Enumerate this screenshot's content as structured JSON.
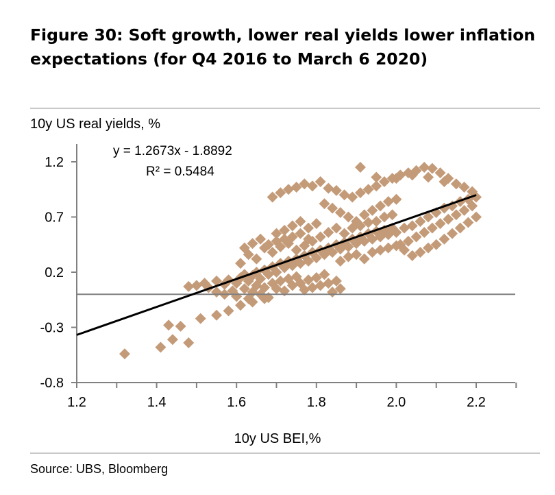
{
  "figure": {
    "title": "Figure 30: Soft growth, lower real yields lower inflation expectations (for Q4 2016 to March 6 2020)",
    "source": "Source:  UBS, Bloomberg"
  },
  "chart_data": {
    "type": "scatter",
    "ylabel": "10y US real yields, %",
    "xlabel": "10y US BEI,%",
    "xlim": [
      1.2,
      2.3
    ],
    "ylim": [
      -0.8,
      1.4
    ],
    "x_ticks": [
      "1.2",
      "1.4",
      "1.6",
      "1.8",
      "2.0",
      "2.2"
    ],
    "y_ticks": [
      "1.2",
      "0.7",
      "0.2",
      "-0.3",
      "-0.8"
    ],
    "grid": false,
    "legend": "none",
    "point_color": "#c49b78",
    "trendline": {
      "slope": 1.2673,
      "intercept": -1.8892,
      "x_range": [
        1.2,
        2.2
      ],
      "equation": "y = 1.2673x - 1.8892",
      "r_squared": "R² = 0.5484",
      "color": "#000000"
    },
    "points": [
      [
        1.32,
        -0.54
      ],
      [
        1.41,
        -0.48
      ],
      [
        1.44,
        -0.41
      ],
      [
        1.48,
        -0.44
      ],
      [
        1.43,
        -0.28
      ],
      [
        1.46,
        -0.29
      ],
      [
        1.51,
        -0.22
      ],
      [
        1.55,
        -0.19
      ],
      [
        1.58,
        -0.15
      ],
      [
        1.61,
        -0.1
      ],
      [
        1.64,
        -0.07
      ],
      [
        1.67,
        -0.04
      ],
      [
        1.48,
        0.07
      ],
      [
        1.5,
        0.08
      ],
      [
        1.52,
        0.1
      ],
      [
        1.53,
        0.06
      ],
      [
        1.55,
        0.12
      ],
      [
        1.57,
        0.09
      ],
      [
        1.58,
        0.13
      ],
      [
        1.6,
        0.1
      ],
      [
        1.61,
        0.15
      ],
      [
        1.62,
        0.18
      ],
      [
        1.63,
        0.12
      ],
      [
        1.64,
        0.17
      ],
      [
        1.65,
        0.2
      ],
      [
        1.66,
        0.14
      ],
      [
        1.67,
        0.22
      ],
      [
        1.68,
        0.18
      ],
      [
        1.69,
        0.25
      ],
      [
        1.7,
        0.2
      ],
      [
        1.71,
        0.28
      ],
      [
        1.72,
        0.24
      ],
      [
        1.73,
        0.3
      ],
      [
        1.74,
        0.26
      ],
      [
        1.75,
        0.32
      ],
      [
        1.76,
        0.28
      ],
      [
        1.77,
        0.35
      ],
      [
        1.78,
        0.3
      ],
      [
        1.79,
        0.38
      ],
      [
        1.8,
        0.33
      ],
      [
        1.81,
        0.4
      ],
      [
        1.82,
        0.36
      ],
      [
        1.83,
        0.42
      ],
      [
        1.84,
        0.38
      ],
      [
        1.85,
        0.45
      ],
      [
        1.86,
        0.41
      ],
      [
        1.87,
        0.47
      ],
      [
        1.88,
        0.43
      ],
      [
        1.89,
        0.5
      ],
      [
        1.9,
        0.46
      ],
      [
        1.91,
        0.52
      ],
      [
        1.92,
        0.48
      ],
      [
        1.93,
        0.55
      ],
      [
        1.94,
        0.5
      ],
      [
        1.95,
        0.57
      ],
      [
        1.96,
        0.52
      ],
      [
        1.97,
        0.58
      ],
      [
        1.98,
        0.54
      ],
      [
        1.99,
        0.6
      ],
      [
        2.0,
        0.56
      ],
      [
        1.55,
        0.02
      ],
      [
        1.57,
        0.0
      ],
      [
        1.59,
        0.03
      ],
      [
        1.6,
        -0.02
      ],
      [
        1.62,
        0.05
      ],
      [
        1.63,
        -0.04
      ],
      [
        1.64,
        0.02
      ],
      [
        1.65,
        0.08
      ],
      [
        1.66,
        0.0
      ],
      [
        1.67,
        0.06
      ],
      [
        1.68,
        -0.03
      ],
      [
        1.69,
        0.1
      ],
      [
        1.7,
        0.05
      ],
      [
        1.71,
        0.12
      ],
      [
        1.72,
        0.03
      ],
      [
        1.73,
        0.14
      ],
      [
        1.74,
        0.08
      ],
      [
        1.75,
        0.16
      ],
      [
        1.76,
        0.1
      ],
      [
        1.77,
        0.04
      ],
      [
        1.78,
        0.13
      ],
      [
        1.79,
        0.06
      ],
      [
        1.8,
        0.15
      ],
      [
        1.81,
        0.08
      ],
      [
        1.82,
        0.18
      ],
      [
        1.83,
        0.1
      ],
      [
        1.84,
        0.02
      ],
      [
        1.85,
        0.12
      ],
      [
        1.86,
        0.05
      ],
      [
        1.68,
        0.45
      ],
      [
        1.7,
        0.48
      ],
      [
        1.72,
        0.5
      ],
      [
        1.74,
        0.52
      ],
      [
        1.76,
        0.55
      ],
      [
        1.78,
        0.5
      ],
      [
        1.67,
        0.42
      ],
      [
        1.69,
        0.38
      ],
      [
        1.71,
        0.43
      ],
      [
        1.73,
        0.46
      ],
      [
        1.75,
        0.4
      ],
      [
        1.77,
        0.44
      ],
      [
        1.79,
        0.48
      ],
      [
        1.81,
        0.52
      ],
      [
        1.83,
        0.56
      ],
      [
        1.85,
        0.6
      ],
      [
        1.87,
        0.55
      ],
      [
        1.89,
        0.6
      ],
      [
        1.91,
        0.62
      ],
      [
        1.93,
        0.65
      ],
      [
        1.95,
        0.66
      ],
      [
        1.97,
        0.7
      ],
      [
        1.99,
        0.72
      ],
      [
        1.86,
        0.3
      ],
      [
        1.88,
        0.34
      ],
      [
        1.9,
        0.36
      ],
      [
        1.92,
        0.32
      ],
      [
        1.94,
        0.38
      ],
      [
        1.96,
        0.4
      ],
      [
        1.98,
        0.42
      ],
      [
        2.0,
        0.44
      ],
      [
        2.02,
        0.4
      ],
      [
        2.04,
        0.35
      ],
      [
        2.06,
        0.38
      ],
      [
        2.08,
        0.42
      ],
      [
        2.1,
        0.45
      ],
      [
        2.12,
        0.5
      ],
      [
        2.14,
        0.55
      ],
      [
        2.16,
        0.6
      ],
      [
        2.18,
        0.65
      ],
      [
        2.2,
        0.7
      ],
      [
        2.02,
        0.6
      ],
      [
        2.04,
        0.62
      ],
      [
        2.06,
        0.66
      ],
      [
        2.08,
        0.7
      ],
      [
        2.1,
        0.74
      ],
      [
        2.12,
        0.78
      ],
      [
        2.14,
        0.8
      ],
      [
        2.16,
        0.84
      ],
      [
        2.18,
        0.86
      ],
      [
        2.2,
        0.88
      ],
      [
        2.19,
        0.8
      ],
      [
        2.17,
        0.76
      ],
      [
        2.15,
        0.72
      ],
      [
        2.13,
        0.68
      ],
      [
        2.11,
        0.64
      ],
      [
        2.09,
        0.6
      ],
      [
        2.07,
        0.56
      ],
      [
        2.05,
        0.52
      ],
      [
        2.03,
        0.48
      ],
      [
        2.01,
        0.45
      ],
      [
        1.69,
        0.88
      ],
      [
        1.71,
        0.92
      ],
      [
        1.73,
        0.95
      ],
      [
        1.75,
        0.97
      ],
      [
        1.77,
        1.0
      ],
      [
        1.79,
        0.98
      ],
      [
        1.81,
        1.02
      ],
      [
        1.83,
        0.96
      ],
      [
        1.85,
        0.94
      ],
      [
        1.87,
        0.9
      ],
      [
        1.89,
        0.88
      ],
      [
        1.91,
        0.92
      ],
      [
        1.93,
        0.95
      ],
      [
        1.95,
        0.98
      ],
      [
        1.97,
        1.02
      ],
      [
        1.99,
        1.05
      ],
      [
        2.01,
        1.08
      ],
      [
        2.03,
        1.1
      ],
      [
        2.05,
        1.12
      ],
      [
        2.07,
        1.15
      ],
      [
        2.09,
        1.14
      ],
      [
        2.11,
        1.1
      ],
      [
        2.13,
        1.05
      ],
      [
        2.15,
        1.0
      ],
      [
        2.17,
        0.97
      ],
      [
        2.19,
        0.93
      ],
      [
        1.91,
        1.15
      ],
      [
        1.95,
        1.06
      ],
      [
        2.0,
        1.05
      ],
      [
        2.04,
        1.08
      ],
      [
        2.08,
        1.06
      ],
      [
        2.12,
        1.02
      ],
      [
        1.82,
        0.82
      ],
      [
        1.84,
        0.78
      ],
      [
        1.86,
        0.74
      ],
      [
        1.88,
        0.7
      ],
      [
        1.9,
        0.66
      ],
      [
        1.92,
        0.72
      ],
      [
        1.94,
        0.76
      ],
      [
        1.96,
        0.8
      ],
      [
        1.98,
        0.84
      ],
      [
        2.0,
        0.86
      ],
      [
        1.78,
        0.6
      ],
      [
        1.8,
        0.64
      ],
      [
        1.76,
        0.66
      ],
      [
        1.74,
        0.62
      ],
      [
        1.72,
        0.58
      ],
      [
        1.7,
        0.55
      ],
      [
        1.66,
        0.5
      ],
      [
        1.64,
        0.46
      ],
      [
        1.62,
        0.42
      ],
      [
        1.63,
        0.36
      ],
      [
        1.65,
        0.32
      ],
      [
        1.61,
        0.28
      ]
    ]
  }
}
